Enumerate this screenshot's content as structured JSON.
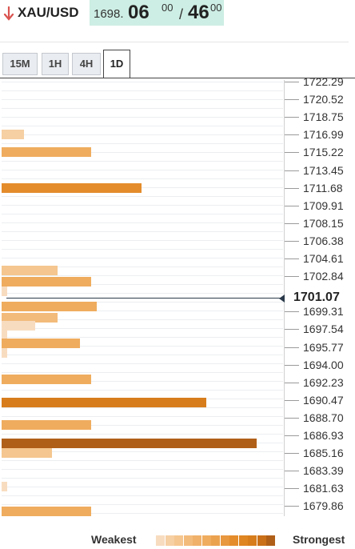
{
  "header": {
    "symbol": "XAU/USD",
    "bid_prefix": "1698.",
    "bid_big": "06",
    "bid_sup": "00",
    "slash": "/",
    "ask_big": "46",
    "ask_sup": "00",
    "direction": "down",
    "down_color": "#d9534f",
    "quote_bg": "#cdeee4"
  },
  "tabs": [
    {
      "label": "15M",
      "active": false
    },
    {
      "label": "1H",
      "active": false
    },
    {
      "label": "4H",
      "active": false
    },
    {
      "label": "1D",
      "active": true
    }
  ],
  "chart_data": {
    "type": "bar",
    "orientation": "horizontal",
    "price_levels": [
      "1722.29",
      "1720.52",
      "1718.75",
      "1716.99",
      "1715.22",
      "1713.45",
      "1711.68",
      "1709.91",
      "1708.15",
      "1706.38",
      "1704.61",
      "1702.84",
      "1701.07",
      "1699.31",
      "1697.54",
      "1695.77",
      "1694.00",
      "1692.23",
      "1690.47",
      "1688.70",
      "1686.93",
      "1685.16",
      "1683.39",
      "1681.63",
      "1679.86"
    ],
    "current_price": "1701.07",
    "bars": [
      {
        "level": 1716.99,
        "strength": 0.08,
        "color": "#f6cfa3"
      },
      {
        "level": 1715.22,
        "strength": 0.32,
        "color": "#efac5e"
      },
      {
        "level": 1711.68,
        "strength": 0.5,
        "color": "#e48c2b"
      },
      {
        "level": 1703.4,
        "strength": 0.2,
        "color": "#f5c68f"
      },
      {
        "level": 1702.3,
        "strength": 0.32,
        "color": "#efac5e"
      },
      {
        "level": 1701.3,
        "strength": 0.02,
        "color": "#f8dcc0"
      },
      {
        "level": 1699.8,
        "strength": 0.34,
        "color": "#efac5e"
      },
      {
        "level": 1698.7,
        "strength": 0.2,
        "color": "#f3bb7b"
      },
      {
        "level": 1697.9,
        "strength": 0.12,
        "color": "#f8dcc0"
      },
      {
        "level": 1697.0,
        "strength": 0.02,
        "color": "#f8dcc0"
      },
      {
        "level": 1696.1,
        "strength": 0.28,
        "color": "#efac5e"
      },
      {
        "level": 1695.2,
        "strength": 0.02,
        "color": "#f8dcc0"
      },
      {
        "level": 1692.5,
        "strength": 0.32,
        "color": "#efac5e"
      },
      {
        "level": 1690.2,
        "strength": 0.73,
        "color": "#d77d1c"
      },
      {
        "level": 1688.0,
        "strength": 0.32,
        "color": "#efac5e"
      },
      {
        "level": 1686.1,
        "strength": 0.91,
        "color": "#b05f18"
      },
      {
        "level": 1685.2,
        "strength": 0.18,
        "color": "#f5c68f"
      },
      {
        "level": 1681.8,
        "strength": 0.02,
        "color": "#f8dcc0"
      },
      {
        "level": 1679.3,
        "strength": 0.32,
        "color": "#efac5e"
      }
    ]
  },
  "legend": {
    "weakest": "Weakest",
    "strongest": "Strongest",
    "colors": [
      "#f8dcc0",
      "#f6cfa3",
      "#f5c68f",
      "#f3bb7b",
      "#f0b16a",
      "#efac5e",
      "#eba24f",
      "#e8983f",
      "#e48c2b",
      "#df8522",
      "#d77d1c",
      "#c97019",
      "#b05f18"
    ]
  }
}
